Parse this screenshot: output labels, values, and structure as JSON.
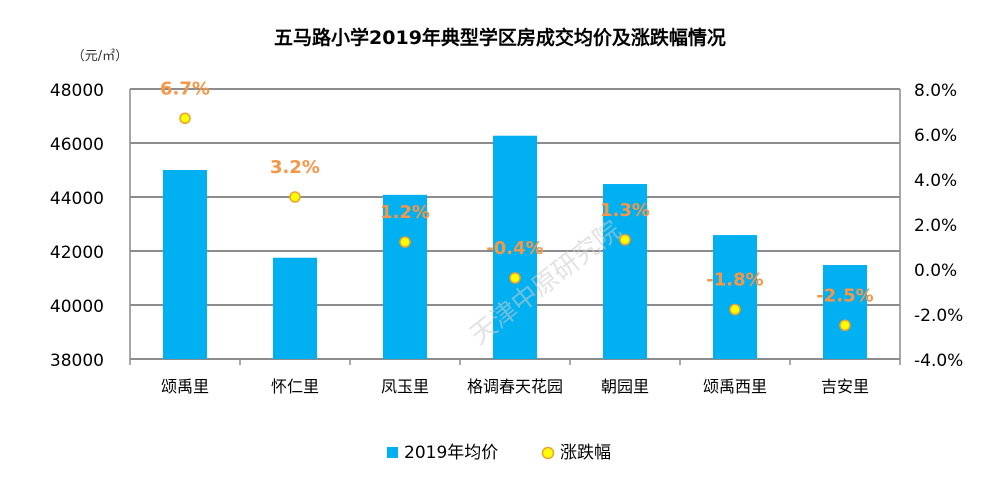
{
  "chart_data": {
    "type": "bar+scatter",
    "title": "五马路小学2019年典型学区房成交均价及涨跌幅情况",
    "unit_label": "（元/㎡）",
    "categories": [
      "颂禹里",
      "怀仁里",
      "凤玉里",
      "格调春天花园",
      "朝园里",
      "颂禹西里",
      "吉安里"
    ],
    "series": [
      {
        "name": "2019年均价",
        "type": "bar",
        "axis": "left",
        "color": "#00B0F0",
        "values": [
          45000,
          41750,
          44080,
          46270,
          44480,
          42590,
          41480
        ]
      },
      {
        "name": "涨跌幅",
        "type": "scatter",
        "axis": "right",
        "color": "#FFFF00",
        "edge_color": "#F0A030",
        "values": [
          6.7,
          3.2,
          1.2,
          -0.4,
          1.3,
          -1.8,
          -2.5
        ],
        "labels": [
          "6.7%",
          "3.2%",
          "1.2%",
          "-0.4%",
          "1.3%",
          "-1.8%",
          "-2.5%"
        ],
        "label_color": "#F79646"
      }
    ],
    "left_axis": {
      "ylim": [
        38000,
        48000
      ],
      "ticks": [
        "38000",
        "40000",
        "42000",
        "44000",
        "46000",
        "48000"
      ]
    },
    "right_axis": {
      "ylim": [
        -4,
        8
      ],
      "ticks": [
        "-4.0%",
        "-2.0%",
        "0.0%",
        "2.0%",
        "4.0%",
        "6.0%",
        "8.0%"
      ]
    },
    "grid": true,
    "legend_position": "bottom",
    "watermark": "天津中原研究院"
  }
}
